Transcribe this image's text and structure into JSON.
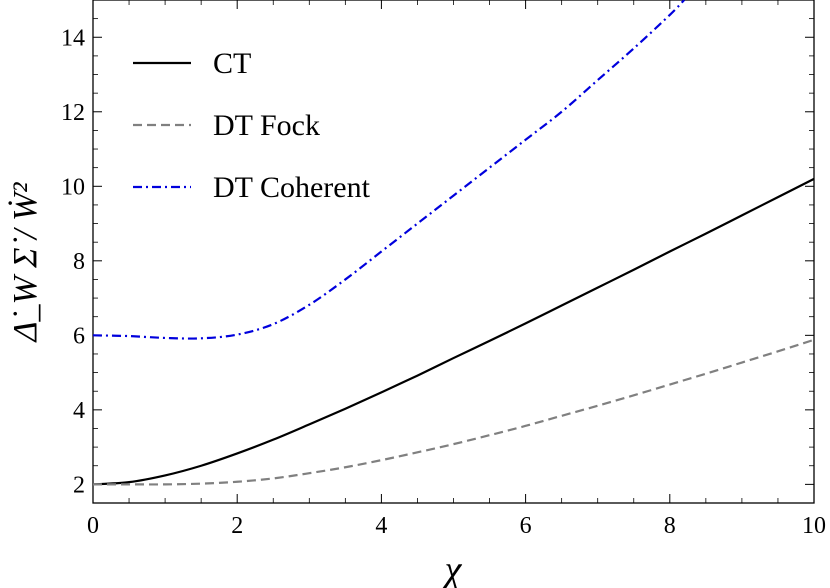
{
  "chart_data": {
    "type": "line",
    "title": "",
    "xlabel": "χ",
    "ylabel": "Δ̇_W Σ̇ / Ẇ²",
    "xlim": [
      0,
      10
    ],
    "ylim": [
      1.5,
      15
    ],
    "x_ticks": [
      0,
      2,
      4,
      6,
      8,
      10
    ],
    "y_ticks": [
      2,
      4,
      6,
      8,
      10,
      12,
      14
    ],
    "grid": false,
    "legend_position": "top-left",
    "series": [
      {
        "name": "CT",
        "color": "#000000",
        "dash": "solid",
        "x": [
          0,
          0.5,
          1,
          1.5,
          2,
          2.5,
          3,
          3.5,
          4,
          4.5,
          5,
          5.5,
          6,
          6.5,
          7,
          7.5,
          8,
          8.5,
          9,
          9.5,
          10
        ],
        "y": [
          2.0,
          2.06,
          2.24,
          2.5,
          2.83,
          3.2,
          3.61,
          4.03,
          4.47,
          4.92,
          5.39,
          5.85,
          6.32,
          6.8,
          7.28,
          7.76,
          8.25,
          8.73,
          9.22,
          9.71,
          10.2
        ]
      },
      {
        "name": "DT Fock",
        "color": "#808080",
        "dash": "dashed",
        "x": [
          0,
          0.5,
          1,
          1.5,
          2,
          2.5,
          3,
          3.5,
          4,
          4.5,
          5,
          5.5,
          6,
          6.5,
          7,
          7.5,
          8,
          8.5,
          9,
          9.5,
          10
        ],
        "y": [
          2.0,
          2.0,
          2.0,
          2.02,
          2.07,
          2.16,
          2.3,
          2.46,
          2.65,
          2.86,
          3.08,
          3.32,
          3.57,
          3.84,
          4.11,
          4.39,
          4.68,
          4.97,
          5.27,
          5.57,
          5.88
        ]
      },
      {
        "name": "DT Coherent",
        "color": "#0000dd",
        "dash": "dashdot",
        "x": [
          0,
          0.5,
          1,
          1.5,
          2,
          2.5,
          3,
          3.5,
          4,
          4.5,
          5,
          5.5,
          6,
          6.5,
          7,
          7.5,
          8,
          8.2
        ],
        "y": [
          6.0,
          5.98,
          5.93,
          5.92,
          6.02,
          6.3,
          6.82,
          7.5,
          8.25,
          9.0,
          9.75,
          10.5,
          11.25,
          12.0,
          12.85,
          13.7,
          14.6,
          15.0
        ]
      }
    ]
  }
}
